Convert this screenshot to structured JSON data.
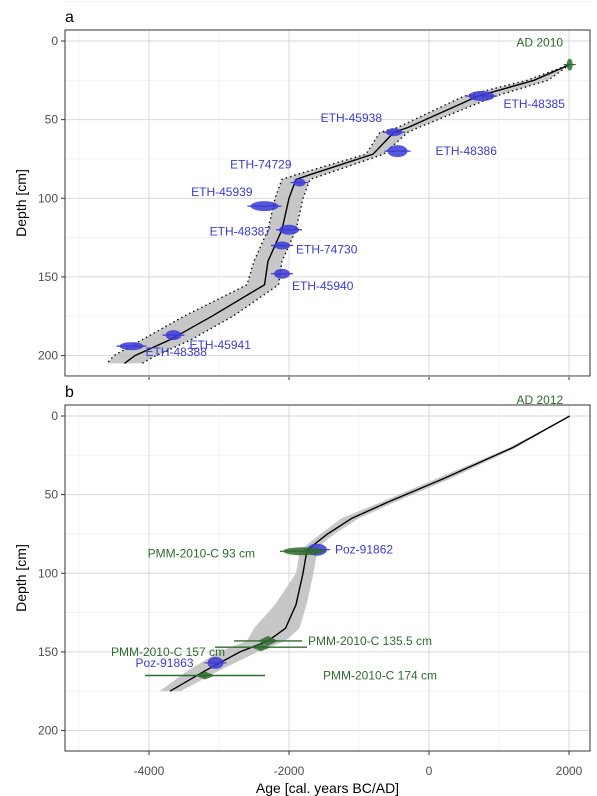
{
  "colors": {
    "blue": "#3a3ad6",
    "green": "#2e6b2e",
    "band": "#bdbdbd",
    "grid_major": "#d9d9d9",
    "grid_minor": "#ececec",
    "panel_border": "#333333",
    "median": "#000000"
  },
  "chart_data": [
    {
      "type": "line",
      "panel_label": "a",
      "xlabel": "",
      "ylabel": "Depth [cm]",
      "xlim": [
        -5200,
        2300
      ],
      "ylim": [
        213,
        -7
      ],
      "y_reversed": true,
      "grid": true,
      "xticks": [
        -4000,
        -2000,
        0,
        2000
      ],
      "xtick_labels": [
        "",
        "",
        "",
        ""
      ],
      "yticks": [
        0,
        50,
        100,
        150,
        200
      ],
      "ytick_labels": [
        "0",
        "50",
        "100",
        "150",
        "200"
      ],
      "median_curve": {
        "x": [
          2010,
          1500,
          700,
          -300,
          -500,
          -800,
          -1700,
          -1900,
          -2000,
          -2100,
          -2300,
          -2350,
          -3100,
          -3700,
          -4200,
          -4350
        ],
        "y": [
          15,
          25,
          35,
          55,
          58,
          72,
          85,
          88,
          100,
          120,
          140,
          155,
          175,
          190,
          200,
          205
        ]
      },
      "confidence_95": {
        "x_min": [
          2010,
          1400,
          500,
          -450,
          -700,
          -900,
          -1900,
          -2100,
          -2200,
          -2300,
          -2500,
          -2600,
          -3500,
          -4100,
          -4500,
          -4600
        ],
        "x_max": [
          2010,
          1700,
          950,
          -150,
          -300,
          -650,
          -1500,
          -1700,
          -1800,
          -1900,
          -2100,
          -2150,
          -2800,
          -3400,
          -3900,
          -4100
        ],
        "y": [
          15,
          25,
          35,
          55,
          58,
          72,
          85,
          88,
          100,
          120,
          140,
          155,
          175,
          190,
          200,
          205
        ]
      },
      "dates": [
        {
          "label": "AD 2010",
          "x": 2010,
          "y": 15,
          "color": "green"
        },
        {
          "label": "ETH-48385",
          "x": 750,
          "y": 35,
          "color": "blue"
        },
        {
          "label": "ETH-45938",
          "x": -500,
          "y": 58,
          "color": "blue"
        },
        {
          "label": "ETH-48386",
          "x": -450,
          "y": 70,
          "color": "blue"
        },
        {
          "label": "ETH-74729",
          "x": -1850,
          "y": 90,
          "color": "blue"
        },
        {
          "label": "ETH-45939",
          "x": -2350,
          "y": 105,
          "color": "blue"
        },
        {
          "label": "ETH-48387",
          "x": -2000,
          "y": 120,
          "color": "blue"
        },
        {
          "label": "ETH-74730",
          "x": -2100,
          "y": 130,
          "color": "blue"
        },
        {
          "label": "ETH-45940",
          "x": -2100,
          "y": 148,
          "color": "blue"
        },
        {
          "label": "ETH-45941",
          "x": -3650,
          "y": 187,
          "color": "blue"
        },
        {
          "label": "ETH-48388",
          "x": -4250,
          "y": 194,
          "color": "blue"
        }
      ]
    },
    {
      "type": "line",
      "panel_label": "b",
      "xlabel": "Age [cal. years BC/AD]",
      "ylabel": "Depth [cm]",
      "xlim": [
        -5200,
        2300
      ],
      "ylim": [
        213,
        -7
      ],
      "y_reversed": true,
      "grid": true,
      "xticks": [
        -4000,
        -2000,
        0,
        2000
      ],
      "xtick_labels": [
        "-4000",
        "-2000",
        "0",
        "2000"
      ],
      "yticks": [
        0,
        50,
        100,
        150,
        200
      ],
      "ytick_labels": [
        "0",
        "50",
        "100",
        "150",
        "200"
      ],
      "median_curve": {
        "x": [
          2012,
          1200,
          200,
          -600,
          -1100,
          -1450,
          -1650,
          -1750,
          -1800,
          -1900,
          -2050,
          -2300,
          -2700,
          -3200,
          -3700
        ],
        "y": [
          0,
          20,
          40,
          55,
          65,
          75,
          82,
          87,
          100,
          120,
          135,
          143,
          150,
          162,
          175
        ]
      },
      "confidence_95": {
        "x_min": [
          2012,
          1150,
          100,
          -700,
          -1250,
          -1550,
          -1750,
          -1850,
          -1900,
          -2200,
          -2500,
          -2600,
          -3000,
          -3450,
          -3850
        ],
        "x_max": [
          2012,
          1250,
          300,
          -500,
          -1000,
          -1350,
          -1550,
          -1600,
          -1650,
          -1750,
          -1850,
          -2050,
          -2450,
          -3000,
          -3550
        ],
        "y": [
          0,
          20,
          40,
          55,
          65,
          75,
          82,
          87,
          100,
          120,
          135,
          143,
          150,
          162,
          175
        ]
      },
      "dates": [
        {
          "label": "AD 2012",
          "x": 2012,
          "y": 0,
          "color": "green"
        },
        {
          "label": "Poz-91862",
          "x": -1600,
          "y": 85,
          "color": "blue"
        },
        {
          "label": "PMM-2010-C 93 cm",
          "x": -1800,
          "y": 86,
          "color": "green"
        },
        {
          "label": "PMM-2010-C 135.5 cm",
          "x": -2300,
          "y": 143,
          "color": "green"
        },
        {
          "label": "PMM-2010-C 157 cm",
          "x": -2400,
          "y": 147,
          "color": "green"
        },
        {
          "label": "Poz-91863",
          "x": -3050,
          "y": 157,
          "color": "blue"
        },
        {
          "label": "PMM-2010-C 174 cm",
          "x": -3200,
          "y": 165,
          "color": "green"
        }
      ]
    }
  ]
}
